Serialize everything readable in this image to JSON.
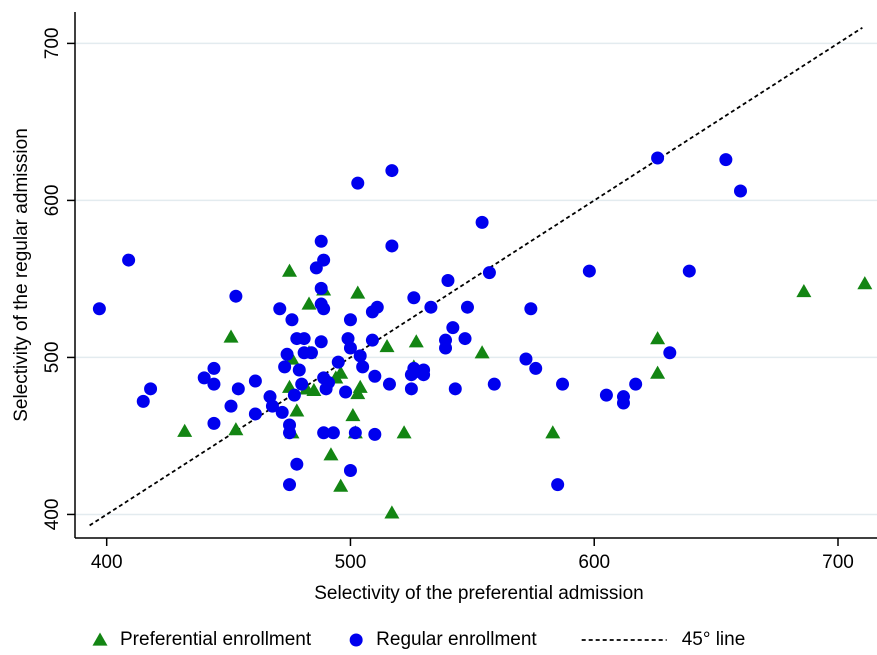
{
  "chart_data": {
    "type": "scatter",
    "x_label": "Selectivity of the preferential admission",
    "y_label": "Selectivity of the regular admission",
    "xlim": [
      387,
      716
    ],
    "ylim": [
      385,
      720
    ],
    "xticks": [
      400,
      500,
      600,
      700
    ],
    "yticks": [
      400,
      500,
      600,
      700
    ],
    "grid": true,
    "legend": "bottom",
    "reference_line": {
      "name": "45° line",
      "from": 393,
      "to": 710,
      "color": "#000000"
    },
    "series": [
      {
        "name": "Preferential enrollment",
        "color": "#138513",
        "marker": "triangle",
        "x": [
          475,
          451,
          432,
          453,
          483,
          489,
          503,
          476,
          483,
          485,
          478,
          476,
          496,
          494,
          504,
          503,
          501,
          502,
          492,
          496,
          517,
          515,
          527,
          526,
          522,
          554,
          583,
          626,
          626,
          686,
          711,
          482,
          475
        ],
        "y": [
          555,
          513,
          453,
          454,
          534,
          543,
          541,
          499,
          503,
          479,
          466,
          452,
          490,
          487,
          481,
          477,
          463,
          452,
          438,
          418,
          401,
          507,
          510,
          494,
          452,
          503,
          452,
          512,
          490,
          542,
          547,
          480,
          481
        ]
      },
      {
        "name": "Regular enrollment",
        "color": "#0000ee",
        "marker": "circle",
        "x": [
          397,
          409,
          415,
          418,
          440,
          444,
          444,
          444,
          451,
          453,
          454,
          461,
          461,
          467,
          468,
          471,
          472,
          473,
          474,
          475,
          475,
          475,
          476,
          477,
          478,
          478,
          479,
          480,
          481,
          481,
          484,
          486,
          488,
          488,
          488,
          489,
          489,
          488,
          489,
          490,
          491,
          489,
          493,
          495,
          498,
          499,
          500,
          500,
          500,
          502,
          503,
          504,
          505,
          509,
          509,
          510,
          511,
          510,
          516,
          517,
          517,
          525,
          525,
          526,
          526,
          528,
          530,
          530,
          533,
          539,
          539,
          540,
          542,
          543,
          547,
          548,
          554,
          557,
          559,
          572,
          574,
          576,
          585,
          587,
          598,
          605,
          612,
          612,
          617,
          626,
          631,
          639,
          654,
          660
        ],
        "y": [
          531,
          562,
          472,
          480,
          487,
          493,
          483,
          458,
          469,
          539,
          480,
          485,
          464,
          475,
          469,
          531,
          465,
          494,
          502,
          457,
          452,
          419,
          524,
          476,
          432,
          512,
          492,
          483,
          512,
          503,
          503,
          557,
          574,
          544,
          534,
          531,
          562,
          510,
          487,
          480,
          484,
          452,
          452,
          497,
          478,
          512,
          524,
          506,
          428,
          452,
          611,
          501,
          494,
          511,
          529,
          451,
          532,
          488,
          483,
          571,
          619,
          480,
          489,
          538,
          493,
          491,
          489,
          492,
          532,
          506,
          511,
          549,
          519,
          480,
          512,
          532,
          586,
          554,
          483,
          499,
          531,
          493,
          419,
          483,
          555,
          476,
          475,
          471,
          483,
          627,
          503,
          555,
          626,
          606
        ]
      }
    ]
  }
}
